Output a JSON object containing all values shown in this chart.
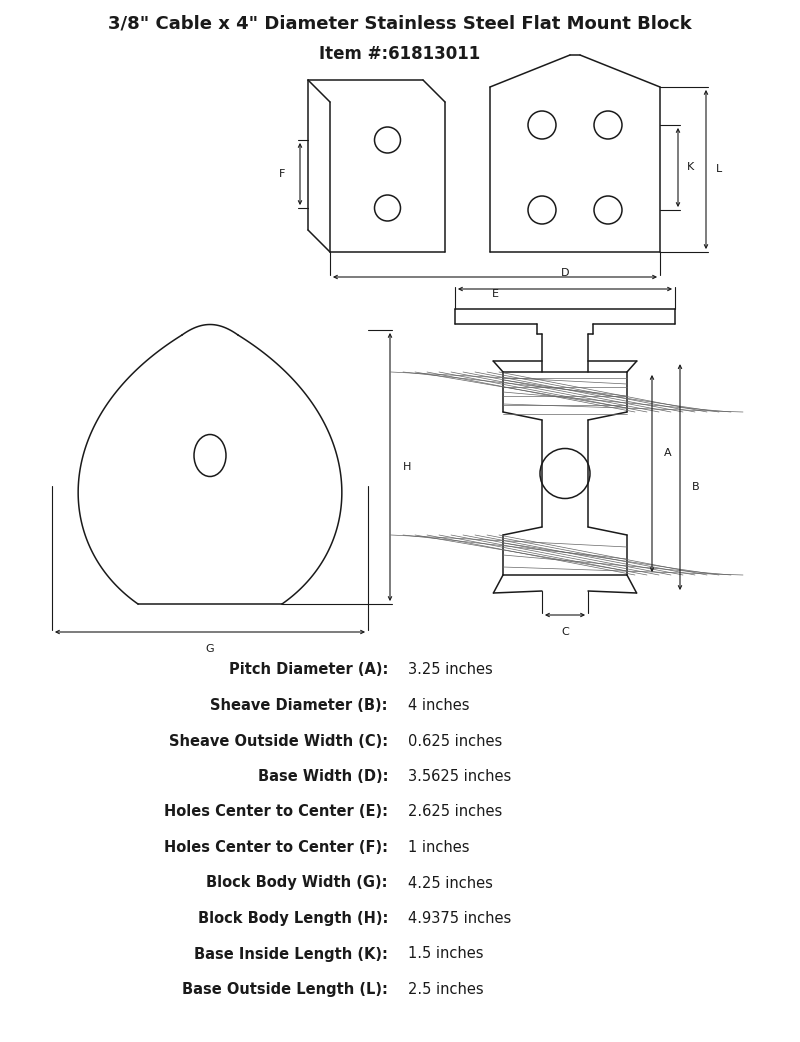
{
  "title_line1": "3/8\" Cable x 4\" Diameter Stainless Steel Flat Mount Block",
  "title_line2": "Item #:61813011",
  "bg_color": "#ffffff",
  "line_color": "#1a1a1a",
  "text_color": "#1a1a1a",
  "specs": [
    {
      "label": "Pitch Diameter (A):",
      "value": "3.25 inches"
    },
    {
      "label": "Sheave Diameter (B):",
      "value": "4 inches"
    },
    {
      "label": "Sheave Outside Width (C):",
      "value": "0.625 inches"
    },
    {
      "label": "Base Width (D):",
      "value": "3.5625 inches"
    },
    {
      "label": "Holes Center to Center (E):",
      "value": "2.625 inches"
    },
    {
      "label": "Holes Center to Center (F):",
      "value": "1 inches"
    },
    {
      "label": "Block Body Width (G):",
      "value": "4.25 inches"
    },
    {
      "label": "Block Body Length (H):",
      "value": "4.9375 inches"
    },
    {
      "label": "Base Inside Length (K):",
      "value": "1.5 inches"
    },
    {
      "label": "Base Outside Length (L):",
      "value": "2.5 inches"
    }
  ],
  "fig_width": 8.0,
  "fig_height": 10.42,
  "dpi": 100
}
